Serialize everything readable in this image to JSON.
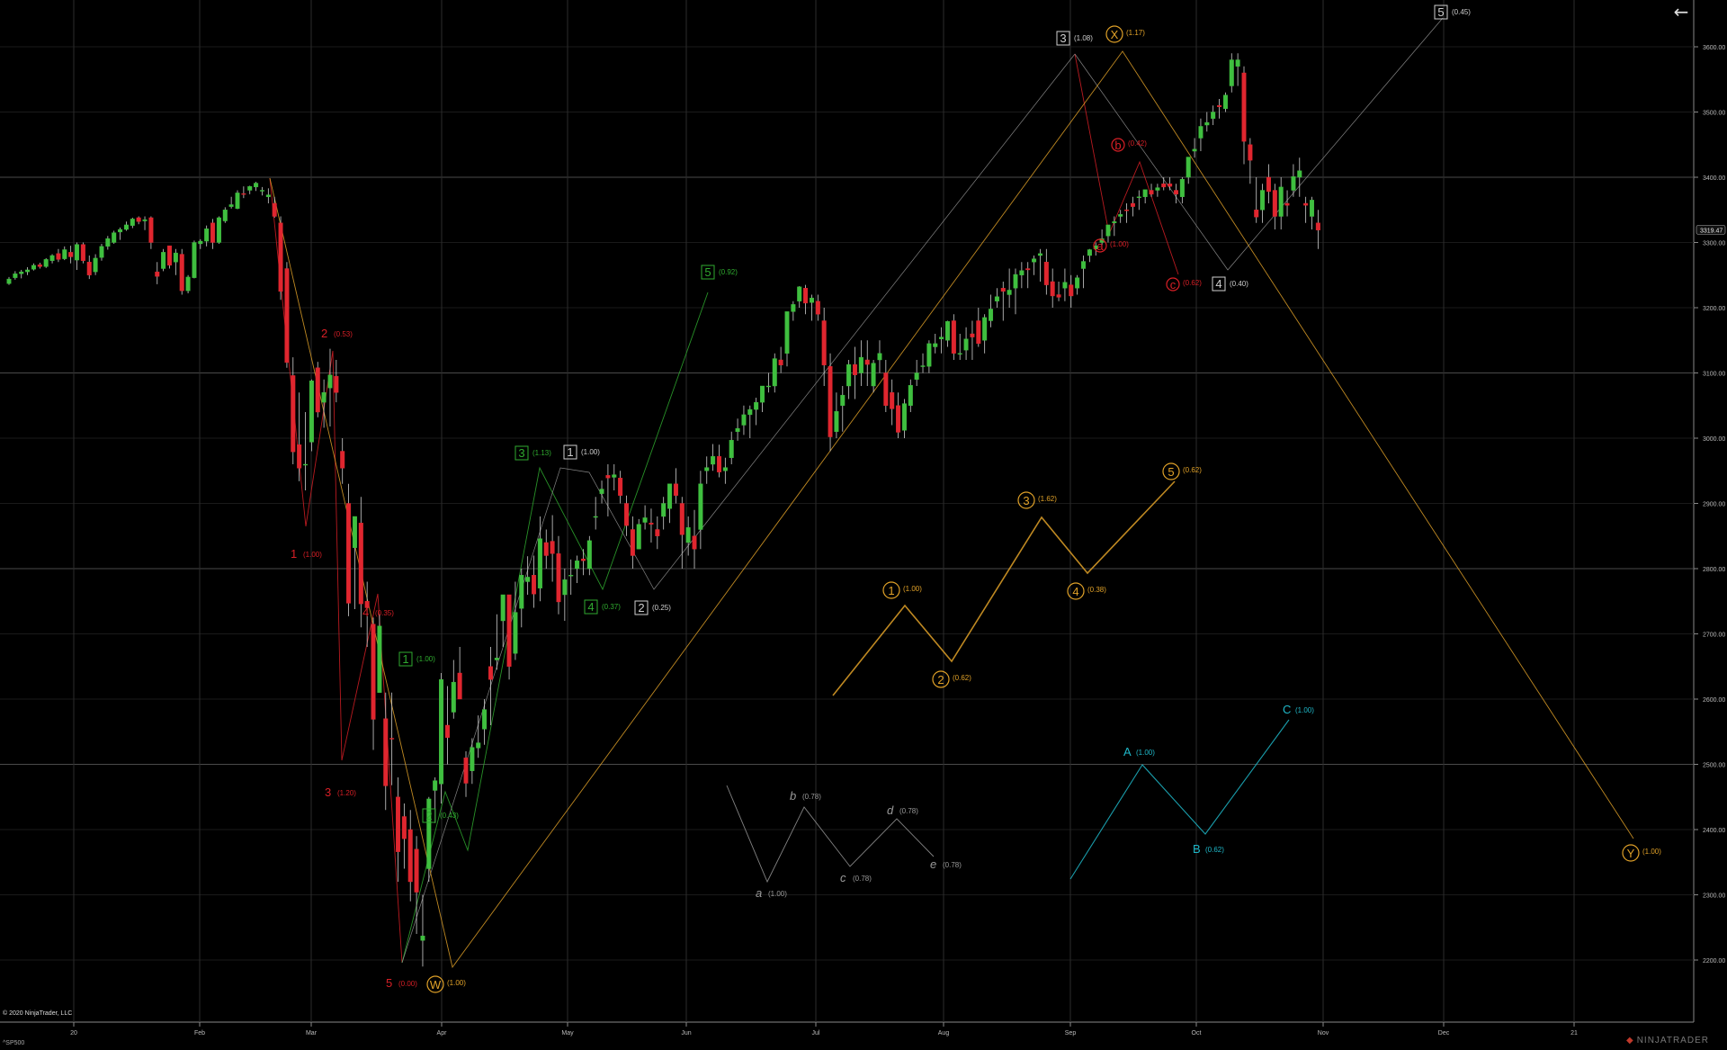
{
  "chart_data": {
    "type": "candlestick",
    "instrument": "^SP500",
    "ylim": [
      2130,
      3720
    ],
    "yticks": [
      2200,
      2300,
      2400,
      2500,
      2600,
      2700,
      2800,
      2900,
      3000,
      3100,
      3200,
      3300,
      3400,
      3500,
      3600
    ],
    "xticks": [
      "20",
      "Feb",
      "Mar",
      "Apr",
      "May",
      "Jun",
      "Jul",
      "Aug",
      "Sep",
      "Oct",
      "Nov",
      "Dec",
      "21"
    ],
    "last_price": "3319.47",
    "candles_start_index": 0,
    "candles_ohlc": [
      [
        3237,
        3247,
        3235,
        3244
      ],
      [
        3246,
        3256,
        3243,
        3252
      ],
      [
        3252,
        3258,
        3245,
        3255
      ],
      [
        3255,
        3262,
        3250,
        3258
      ],
      [
        3259,
        3268,
        3257,
        3265
      ],
      [
        3266,
        3269,
        3260,
        3263
      ],
      [
        3263,
        3276,
        3261,
        3274
      ],
      [
        3272,
        3282,
        3268,
        3280
      ],
      [
        3283,
        3290,
        3270,
        3274
      ],
      [
        3275,
        3294,
        3273,
        3289
      ],
      [
        3285,
        3295,
        3268,
        3278
      ],
      [
        3273,
        3300,
        3258,
        3297
      ],
      [
        3297,
        3300,
        3268,
        3272
      ],
      [
        3270,
        3280,
        3244,
        3250
      ],
      [
        3255,
        3282,
        3250,
        3276
      ],
      [
        3277,
        3298,
        3272,
        3294
      ],
      [
        3294,
        3310,
        3289,
        3306
      ],
      [
        3300,
        3318,
        3298,
        3315
      ],
      [
        3316,
        3323,
        3304,
        3320
      ],
      [
        3320,
        3332,
        3318,
        3327
      ],
      [
        3326,
        3338,
        3322,
        3336
      ],
      [
        3338,
        3340,
        3328,
        3332
      ],
      [
        3333,
        3340,
        3319,
        3335
      ],
      [
        3338,
        3340,
        3290,
        3300
      ],
      [
        3255,
        3270,
        3236,
        3248
      ],
      [
        3260,
        3290,
        3256,
        3285
      ],
      [
        3295,
        3295,
        3260,
        3265
      ],
      [
        3270,
        3290,
        3250,
        3284
      ],
      [
        3282,
        3290,
        3220,
        3226
      ],
      [
        3226,
        3250,
        3222,
        3247
      ],
      [
        3246,
        3303,
        3245,
        3300
      ],
      [
        3298,
        3305,
        3290,
        3302
      ],
      [
        3302,
        3326,
        3294,
        3321
      ],
      [
        3330,
        3336,
        3290,
        3300
      ],
      [
        3300,
        3340,
        3298,
        3338
      ],
      [
        3333,
        3354,
        3330,
        3350
      ],
      [
        3355,
        3370,
        3352,
        3358
      ],
      [
        3352,
        3380,
        3351,
        3376
      ],
      [
        3375,
        3386,
        3368,
        3374
      ],
      [
        3380,
        3387,
        3374,
        3386
      ],
      [
        3385,
        3393,
        3379,
        3391
      ],
      [
        3380,
        3385,
        3372,
        3380
      ],
      [
        3370,
        3383,
        3360,
        3373
      ],
      [
        3360,
        3370,
        3338,
        3340
      ],
      [
        3330,
        3340,
        3212,
        3225
      ],
      [
        3260,
        3270,
        3108,
        3116
      ],
      [
        3096,
        3124,
        2960,
        2979
      ],
      [
        2990,
        3070,
        2934,
        2954
      ],
      [
        2960,
        3040,
        2920,
        2960
      ],
      [
        2994,
        3090,
        2980,
        3088
      ],
      [
        3108,
        3117,
        3032,
        3040
      ],
      [
        3055,
        3090,
        3016,
        3070
      ],
      [
        3077,
        3137,
        3018,
        3097
      ],
      [
        3095,
        3120,
        3055,
        3070
      ],
      [
        2980,
        3000,
        2930,
        2954
      ],
      [
        2900,
        2930,
        2727,
        2747
      ],
      [
        2832,
        2880,
        2738,
        2880
      ],
      [
        2870,
        2910,
        2710,
        2746
      ],
      [
        2750,
        2780,
        2680,
        2740
      ],
      [
        2715,
        2725,
        2522,
        2569
      ],
      [
        2610,
        2730,
        2610,
        2712
      ],
      [
        2570,
        2610,
        2430,
        2467
      ],
      [
        2540,
        2610,
        2468,
        2539
      ],
      [
        2450,
        2480,
        2320,
        2366
      ],
      [
        2420,
        2440,
        2340,
        2386
      ],
      [
        2400,
        2430,
        2290,
        2320
      ],
      [
        2370,
        2390,
        2240,
        2304
      ],
      [
        2230,
        2300,
        2190,
        2237
      ],
      [
        2340,
        2450,
        2320,
        2447
      ],
      [
        2460,
        2480,
        2410,
        2475
      ],
      [
        2470,
        2640,
        2440,
        2630
      ],
      [
        2560,
        2620,
        2500,
        2541
      ],
      [
        2580,
        2660,
        2570,
        2626
      ],
      [
        2640,
        2680,
        2600,
        2600
      ],
      [
        2510,
        2520,
        2450,
        2471
      ],
      [
        2490,
        2540,
        2470,
        2526
      ],
      [
        2525,
        2575,
        2510,
        2533
      ],
      [
        2554,
        2600,
        2530,
        2584
      ],
      [
        2650,
        2680,
        2560,
        2630
      ],
      [
        2660,
        2730,
        2645,
        2663
      ],
      [
        2720,
        2760,
        2680,
        2760
      ],
      [
        2760,
        2760,
        2630,
        2650
      ],
      [
        2670,
        2780,
        2660,
        2733
      ],
      [
        2739,
        2800,
        2710,
        2790
      ],
      [
        2780,
        2819,
        2760,
        2787
      ],
      [
        2790,
        2820,
        2740,
        2761
      ],
      [
        2770,
        2880,
        2750,
        2846
      ],
      [
        2840,
        2860,
        2800,
        2820
      ],
      [
        2842,
        2882,
        2780,
        2823
      ],
      [
        2823,
        2850,
        2730,
        2749
      ],
      [
        2760,
        2800,
        2720,
        2783
      ],
      [
        2790,
        2814,
        2760,
        2790
      ],
      [
        2800,
        2820,
        2778,
        2812
      ],
      [
        2815,
        2830,
        2790,
        2812
      ],
      [
        2800,
        2850,
        2790,
        2843
      ],
      [
        2880,
        2910,
        2860,
        2880
      ],
      [
        2915,
        2935,
        2900,
        2922
      ],
      [
        2943,
        2960,
        2880,
        2939
      ],
      [
        2940,
        2960,
        2920,
        2944
      ],
      [
        2939,
        2950,
        2900,
        2912
      ],
      [
        2900,
        2912,
        2850,
        2866
      ],
      [
        2860,
        2880,
        2800,
        2820
      ],
      [
        2830,
        2876,
        2830,
        2868
      ],
      [
        2871,
        2897,
        2860,
        2878
      ],
      [
        2870,
        2892,
        2840,
        2868
      ],
      [
        2860,
        2880,
        2830,
        2850
      ],
      [
        2880,
        2910,
        2860,
        2900
      ],
      [
        2892,
        2930,
        2870,
        2930
      ],
      [
        2930,
        2954,
        2900,
        2912
      ],
      [
        2900,
        2910,
        2800,
        2852
      ],
      [
        2840,
        2880,
        2820,
        2863
      ],
      [
        2850,
        2890,
        2800,
        2830
      ],
      [
        2860,
        2950,
        2830,
        2930
      ],
      [
        2950,
        2972,
        2930,
        2955
      ],
      [
        2960,
        2991,
        2950,
        2972
      ],
      [
        2972,
        2990,
        2940,
        2948
      ],
      [
        2950,
        2970,
        2930,
        2955
      ],
      [
        2970,
        3010,
        2960,
        2997
      ],
      [
        3010,
        3030,
        2996,
        3015
      ],
      [
        3020,
        3050,
        3005,
        3036
      ],
      [
        3036,
        3050,
        3000,
        3044
      ],
      [
        3044,
        3062,
        3020,
        3055
      ],
      [
        3055,
        3080,
        3040,
        3080
      ],
      [
        3080,
        3100,
        3070,
        3080
      ],
      [
        3080,
        3130,
        3070,
        3122
      ],
      [
        3120,
        3140,
        3100,
        3112
      ],
      [
        3130,
        3160,
        3110,
        3194
      ],
      [
        3194,
        3210,
        3180,
        3205
      ],
      [
        3210,
        3233,
        3200,
        3232
      ],
      [
        3230,
        3235,
        3190,
        3207
      ],
      [
        3208,
        3220,
        3180,
        3215
      ],
      [
        3210,
        3220,
        3180,
        3190
      ],
      [
        3180,
        3200,
        3080,
        3112
      ],
      [
        3110,
        3130,
        2980,
        3002
      ],
      [
        3010,
        3070,
        3000,
        3041
      ],
      [
        3050,
        3080,
        3010,
        3066
      ],
      [
        3080,
        3120,
        3060,
        3113
      ],
      [
        3113,
        3140,
        3060,
        3097
      ],
      [
        3100,
        3150,
        3080,
        3124
      ],
      [
        3120,
        3150,
        3080,
        3113
      ],
      [
        3080,
        3120,
        3070,
        3115
      ],
      [
        3120,
        3150,
        3100,
        3130
      ],
      [
        3100,
        3120,
        3040,
        3050
      ],
      [
        3070,
        3090,
        3020,
        3045
      ],
      [
        3050,
        3070,
        3000,
        3009
      ],
      [
        3012,
        3060,
        3000,
        3053
      ],
      [
        3050,
        3090,
        3040,
        3081
      ],
      [
        3090,
        3120,
        3080,
        3100
      ],
      [
        3110,
        3130,
        3100,
        3111
      ],
      [
        3110,
        3150,
        3100,
        3145
      ],
      [
        3140,
        3160,
        3130,
        3145
      ],
      [
        3152,
        3170,
        3130,
        3155
      ],
      [
        3150,
        3180,
        3140,
        3179
      ],
      [
        3180,
        3190,
        3120,
        3130
      ],
      [
        3130,
        3160,
        3120,
        3130
      ],
      [
        3135,
        3170,
        3120,
        3152
      ],
      [
        3160,
        3180,
        3120,
        3155
      ],
      [
        3180,
        3200,
        3140,
        3145
      ],
      [
        3150,
        3190,
        3130,
        3185
      ],
      [
        3180,
        3220,
        3170,
        3198
      ],
      [
        3210,
        3230,
        3200,
        3217
      ],
      [
        3230,
        3240,
        3180,
        3225
      ],
      [
        3220,
        3260,
        3200,
        3227
      ],
      [
        3230,
        3260,
        3190,
        3251
      ],
      [
        3250,
        3270,
        3230,
        3257
      ],
      [
        3260,
        3270,
        3230,
        3258
      ],
      [
        3270,
        3280,
        3250,
        3275
      ],
      [
        3280,
        3290,
        3240,
        3283
      ],
      [
        3270,
        3290,
        3220,
        3235
      ],
      [
        3240,
        3260,
        3200,
        3218
      ],
      [
        3220,
        3240,
        3210,
        3216
      ],
      [
        3230,
        3260,
        3210,
        3239
      ],
      [
        3235,
        3250,
        3200,
        3218
      ],
      [
        3230,
        3250,
        3220,
        3246
      ],
      [
        3260,
        3280,
        3230,
        3271
      ],
      [
        3280,
        3290,
        3270,
        3289
      ],
      [
        3290,
        3300,
        3280,
        3295
      ],
      [
        3300,
        3320,
        3290,
        3306
      ],
      [
        3310,
        3320,
        3300,
        3327
      ],
      [
        3330,
        3340,
        3310,
        3332
      ],
      [
        3340,
        3350,
        3330,
        3343
      ],
      [
        3350,
        3360,
        3330,
        3349
      ],
      [
        3360,
        3370,
        3340,
        3355
      ],
      [
        3370,
        3380,
        3350,
        3370
      ],
      [
        3370,
        3380,
        3360,
        3381
      ],
      [
        3380,
        3390,
        3370,
        3374
      ],
      [
        3380,
        3390,
        3370,
        3384
      ],
      [
        3390,
        3400,
        3380,
        3385
      ],
      [
        3390,
        3400,
        3380,
        3386
      ],
      [
        3380,
        3390,
        3360,
        3374
      ],
      [
        3370,
        3400,
        3360,
        3397
      ],
      [
        3400,
        3420,
        3390,
        3431
      ],
      [
        3440,
        3460,
        3430,
        3443
      ],
      [
        3460,
        3490,
        3440,
        3478
      ],
      [
        3480,
        3500,
        3470,
        3484
      ],
      [
        3490,
        3510,
        3480,
        3500
      ],
      [
        3510,
        3520,
        3490,
        3508
      ],
      [
        3505,
        3530,
        3500,
        3526
      ],
      [
        3540,
        3590,
        3530,
        3580
      ],
      [
        3570,
        3590,
        3540,
        3580
      ],
      [
        3560,
        3570,
        3420,
        3455
      ],
      [
        3450,
        3460,
        3390,
        3426
      ],
      [
        3350,
        3400,
        3330,
        3339
      ],
      [
        3350,
        3390,
        3330,
        3380
      ],
      [
        3400,
        3420,
        3360,
        3378
      ],
      [
        3380,
        3390,
        3320,
        3340
      ],
      [
        3340,
        3400,
        3320,
        3385
      ],
      [
        3360,
        3380,
        3340,
        3357
      ],
      [
        3380,
        3420,
        3370,
        3401
      ],
      [
        3400,
        3430,
        3370,
        3410
      ],
      [
        3360,
        3370,
        3330,
        3357
      ],
      [
        3340,
        3370,
        3320,
        3365
      ],
      [
        3330,
        3350,
        3290,
        3319
      ]
    ],
    "overlay_labels": {
      "red": [
        {
          "text": "1",
          "ratio": "(1.00)"
        },
        {
          "text": "2",
          "ratio": "(0.53)"
        },
        {
          "text": "3",
          "ratio": "(1.20)"
        },
        {
          "text": "4",
          "ratio": "(0.35)"
        },
        {
          "text": "5",
          "ratio": "(0.00)"
        },
        {
          "text": "a",
          "ratio": "(1.00)"
        },
        {
          "text": "b",
          "ratio": "(0.42)"
        },
        {
          "text": "c",
          "ratio": "(0.62)"
        }
      ],
      "green": [
        {
          "text": "1",
          "ratio": "(1.00)"
        },
        {
          "text": "2",
          "ratio": "(0.43)"
        },
        {
          "text": "3",
          "ratio": "(1.13)"
        },
        {
          "text": "4",
          "ratio": "(0.37)"
        },
        {
          "text": "5",
          "ratio": "(0.92)"
        }
      ],
      "grey_box": [
        {
          "text": "1",
          "ratio": "(1.00)"
        },
        {
          "text": "2",
          "ratio": "(0.25)"
        },
        {
          "text": "3",
          "ratio": "(1.08)"
        },
        {
          "text": "4",
          "ratio": "(0.40)"
        },
        {
          "text": "5",
          "ratio": "(0.45)"
        }
      ],
      "orange_circle": [
        {
          "text": "W",
          "ratio": "(1.00)"
        },
        {
          "text": "X",
          "ratio": "(1.17)"
        },
        {
          "text": "Y",
          "ratio": "(1.00)"
        },
        {
          "text": "1",
          "ratio": "(1.00)"
        },
        {
          "text": "2",
          "ratio": "(0.62)"
        },
        {
          "text": "3",
          "ratio": "(1.62)"
        },
        {
          "text": "4",
          "ratio": "(0.38)"
        },
        {
          "text": "5",
          "ratio": "(0.62)"
        }
      ],
      "grey_italic": [
        {
          "text": "a",
          "ratio": "(1.00)"
        },
        {
          "text": "b",
          "ratio": "(0.78)"
        },
        {
          "text": "c",
          "ratio": "(0.78)"
        },
        {
          "text": "d",
          "ratio": "(0.78)"
        },
        {
          "text": "e",
          "ratio": "(0.78)"
        }
      ],
      "cyan": [
        {
          "text": "A",
          "ratio": "(1.00)"
        },
        {
          "text": "B",
          "ratio": "(0.62)"
        },
        {
          "text": "C",
          "ratio": "(1.00)"
        }
      ]
    },
    "colors": {
      "background": "#000000",
      "grid": "#3a3a3a",
      "up": "#3fbf3f",
      "down": "#e0262f",
      "red_wave": "#d81f26",
      "green_wave": "#2faa2f",
      "orange_wave": "#e0a128",
      "grey_wave": "#9a9a9a",
      "cyan_wave": "#1fb8c9"
    }
  },
  "ui": {
    "back_icon": "arrow-left-icon",
    "back_glyph": "←",
    "copyright": "© 2020 NinjaTrader, LLC",
    "logo_text": "NINJATRADER",
    "logo_glyph": "◆"
  }
}
